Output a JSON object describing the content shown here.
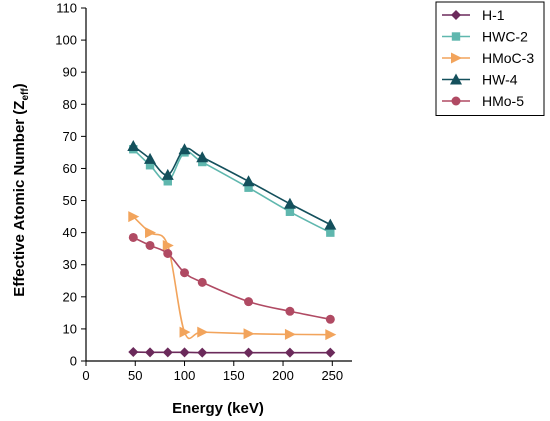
{
  "chart_data": {
    "type": "line",
    "xlabel": "Energy (keV)",
    "ylabel_main": "Effective Atomic Number (Z",
    "ylabel_sub": "eff",
    "ylabel_close": ")",
    "xlim": [
      0,
      270
    ],
    "ylim": [
      0,
      110
    ],
    "xticks": [
      0,
      50,
      100,
      150,
      200,
      250
    ],
    "yticks": [
      0,
      10,
      20,
      30,
      40,
      50,
      60,
      70,
      80,
      90,
      100,
      110
    ],
    "legend_position": "top-right",
    "x": [
      48,
      65,
      83,
      100,
      118,
      165,
      207,
      248
    ],
    "series": [
      {
        "name": "H-1",
        "color": "#6b2a5b",
        "marker": "diamond",
        "values": [
          2.8,
          2.7,
          2.7,
          2.7,
          2.6,
          2.6,
          2.6,
          2.6
        ]
      },
      {
        "name": "HWC-2",
        "color": "#5fb7ae",
        "marker": "square",
        "values": [
          66,
          61,
          56,
          65,
          62,
          54,
          46.5,
          40
        ]
      },
      {
        "name": "HMoC-3",
        "color": "#f2a45c",
        "marker": "triangle-right",
        "values": [
          45,
          40,
          36,
          9,
          9,
          8.5,
          8.3,
          8.2
        ]
      },
      {
        "name": "HW-4",
        "color": "#14505c",
        "marker": "triangle-up",
        "values": [
          67,
          63,
          58,
          66,
          63.5,
          56,
          49,
          42.5
        ]
      },
      {
        "name": "HMo-5",
        "color": "#b04a63",
        "marker": "circle",
        "values": [
          38.5,
          36,
          33.5,
          27.5,
          24.5,
          18.5,
          15.5,
          13
        ]
      }
    ]
  }
}
